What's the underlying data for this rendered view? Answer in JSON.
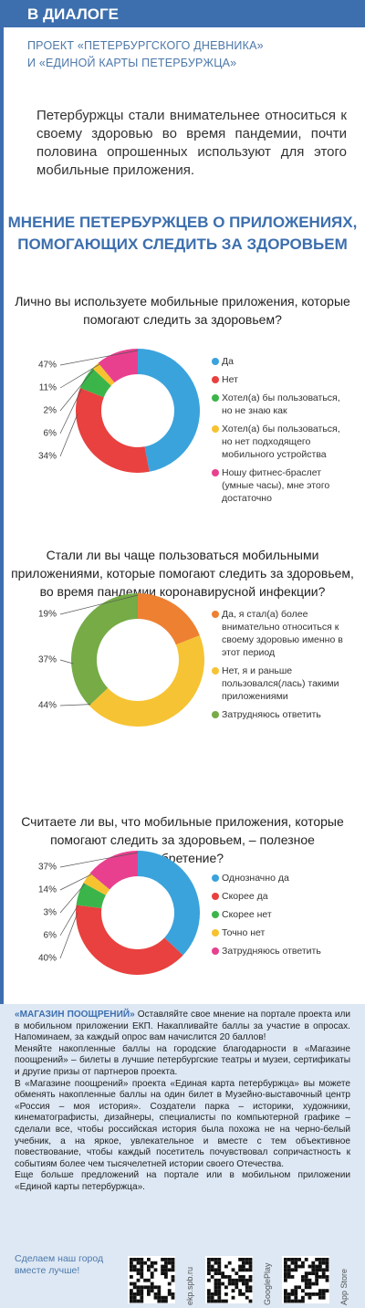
{
  "header": {
    "title": "В ДИАЛОГЕ",
    "subtitle": [
      "ПРОЕКТ «ПЕТЕРБУРГСКОГО ДНЕВНИКА»",
      "И «ЕДИНОЙ КАРТЫ ПЕТЕРБУРЖЦА»"
    ]
  },
  "intro": "Петербуржцы стали внимательнее относиться к своему здоровью во время пандемии, почти половина опрошенных используют для этого мобильные приложения.",
  "main_title": [
    "МНЕНИЕ ПЕТЕРБУРЖЦЕВ О ПРИЛОЖЕНИЯХ,",
    "ПОМОГАЮЩИХ СЛЕДИТЬ ЗА ЗДОРОВЬЕМ"
  ],
  "chart_data": [
    {
      "type": "pie",
      "title": "Лично вы используете мобильные приложения, которые помогают следить за здоровьем?",
      "categories": [
        "Да",
        "Нет",
        "Хотел(а) бы пользоваться, но не знаю как",
        "Хотел(а) бы пользоваться, но нет подходящего мобильного устройства",
        "Ношу фитнес-браслет (умные часы), мне этого достаточно"
      ],
      "values": [
        47,
        34,
        6,
        2,
        11
      ],
      "value_labels": [
        "47%",
        "34%",
        "6%",
        "2%",
        "11%"
      ],
      "colors": [
        "#3aa3dc",
        "#e8413f",
        "#3bb54a",
        "#f7c230",
        "#e8408f"
      ]
    },
    {
      "type": "pie",
      "title": "Стали ли вы чаще пользоваться мобильными приложениями, которые помогают следить за здоровьем, во время пандемии коронавирусной инфекции?",
      "categories": [
        "Да, я стал(а) более внимательно относиться к своему здоровью именно в этот период",
        "Нет, я и раньше пользовался(лась) такими приложениями",
        "Затрудняюсь ответить"
      ],
      "values": [
        19,
        44,
        37
      ],
      "value_labels": [
        "19%",
        "44%",
        "37%"
      ],
      "colors": [
        "#ee8032",
        "#f6c334",
        "#76ab46"
      ]
    },
    {
      "type": "pie",
      "title": "Считаете ли вы, что мобильные приложения, которые помогают следить за здоровьем, – полезное изобретение?",
      "categories": [
        "Однозначно да",
        "Скорее да",
        "Скорее нет",
        "Точно нет",
        "Затрудняюсь ответить"
      ],
      "values": [
        37,
        40,
        6,
        3,
        14
      ],
      "value_labels": [
        "37%",
        "40%",
        "6%",
        "3%",
        "14%"
      ],
      "colors": [
        "#3aa3dc",
        "#e8413f",
        "#3bb54a",
        "#f7c230",
        "#e8408f"
      ]
    }
  ],
  "footer": {
    "lead": "«МАГАЗИН ПООЩРЕНИЙ»",
    "paragraphs": [
      "Оставляйте свое мнение на портале проекта или в мобильном приложении ЕКП. Накапливайте баллы за участие в опросах. Напоминаем, за каждый опрос вам начислится 20 баллов!",
      "Меняйте накопленные баллы на городские благодарности в «Магазине поощрений» – билеты в лучшие петербургские театры и музеи, сертификаты и другие призы от партнеров проекта.",
      "В «Магазине поощрений» проекта «Единая карта петербуржца» вы можете обменять накопленные баллы на один билет в Музейно-выставочный центр «Россия – моя история». Создатели парка – историки, художники, кинематографисты, дизайнеры, специалисты по компьютерной графике – сделали все, чтобы российская история была похожа не на черно-белый учебник, а на яркое, увлекательное и вместе с тем объективное повествование, чтобы каждый посетитель почувствовал сопричастность к событиям более чем тысячелетней истории своего Отечества.",
      "Еще больше предложений на портале или в мобильном приложении «Единой карты петербуржца»."
    ],
    "slogan": "Сделаем наш город вместе лучше!",
    "links": [
      "ekp.spb.ru",
      "GooglePlay",
      "App Store"
    ]
  }
}
